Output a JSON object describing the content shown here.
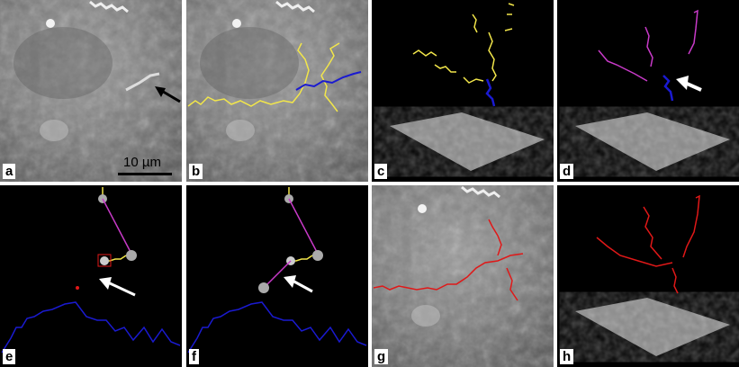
{
  "figure": {
    "panels": [
      {
        "id": "a",
        "label": "a"
      },
      {
        "id": "b",
        "label": "b"
      },
      {
        "id": "c",
        "label": "c"
      },
      {
        "id": "d",
        "label": "d"
      },
      {
        "id": "e",
        "label": "e"
      },
      {
        "id": "f",
        "label": "f"
      },
      {
        "id": "g",
        "label": "g"
      },
      {
        "id": "h",
        "label": "h"
      }
    ],
    "scale_bar": {
      "label": "10 µm"
    },
    "colors": {
      "trace_yellow": "#f2e64a",
      "trace_blue": "#1a1ad0",
      "trace_magenta": "#c83ac8",
      "trace_red": "#e01818",
      "arrow_white": "#ffffff",
      "arrow_black": "#000000"
    }
  }
}
